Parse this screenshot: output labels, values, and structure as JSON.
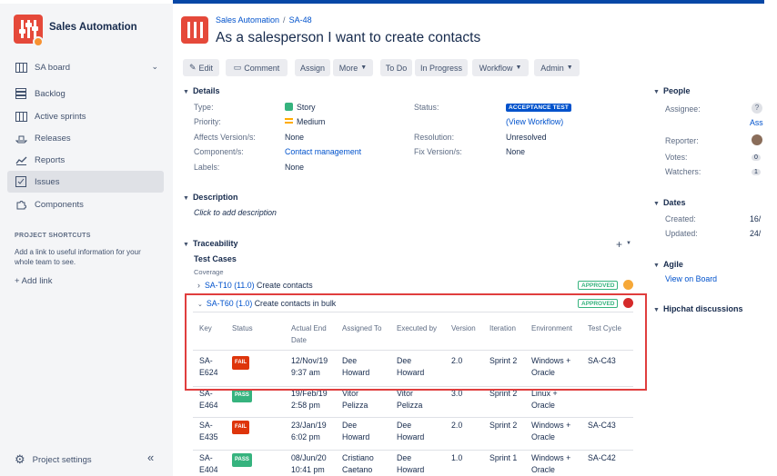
{
  "sidebar": {
    "project_name": "Sales Automation",
    "board": "SA board",
    "items": [
      {
        "label": "Backlog",
        "icon": "backlog-icon"
      },
      {
        "label": "Active sprints",
        "icon": "board-icon"
      },
      {
        "label": "Releases",
        "icon": "ship-icon"
      },
      {
        "label": "Reports",
        "icon": "chart-icon"
      },
      {
        "label": "Issues",
        "icon": "issues-icon"
      },
      {
        "label": "Components",
        "icon": "puzzle-icon"
      }
    ],
    "shortcuts_heading": "PROJECT SHORTCUTS",
    "shortcuts_text": "Add a link to useful information for your whole team to see.",
    "add_link": "+ Add link",
    "project_settings": "Project settings"
  },
  "breadcrumb": {
    "project": "Sales Automation",
    "issue_key": "SA-48"
  },
  "issue_title": "As a salesperson I want to create contacts",
  "toolbar": {
    "edit": "Edit",
    "comment": "Comment",
    "assign": "Assign",
    "more": "More",
    "todo": "To Do",
    "in_progress": "In Progress",
    "workflow": "Workflow",
    "admin": "Admin"
  },
  "details": {
    "heading": "Details",
    "type_label": "Type:",
    "type_value": "Story",
    "priority_label": "Priority:",
    "priority_value": "Medium",
    "affects_label": "Affects Version/s:",
    "affects_value": "None",
    "component_label": "Component/s:",
    "component_value": "Contact management",
    "labels_label": "Labels:",
    "labels_value": "None",
    "status_label": "Status:",
    "status_value": "ACCEPTANCE TEST",
    "view_workflow": "(View Workflow)",
    "resolution_label": "Resolution:",
    "resolution_value": "Unresolved",
    "fix_label": "Fix Version/s:",
    "fix_value": "None"
  },
  "description": {
    "heading": "Description",
    "placeholder": "Click to add description"
  },
  "traceability": {
    "heading": "Traceability",
    "test_cases": "Test Cases",
    "coverage": "Coverage",
    "case1": {
      "key": "SA-T10",
      "version": "(11.0)",
      "name": "Create contacts",
      "status": "APPROVED",
      "dot_color": "#f6a838"
    },
    "case2": {
      "key": "SA-T60",
      "version": "(1.0)",
      "name": "Create contacts in bulk",
      "status": "APPROVED",
      "dot_color": "#d52a2a"
    },
    "headers": [
      "Key",
      "Status",
      "Actual End Date",
      "Assigned To",
      "Executed by",
      "Version",
      "Iteration",
      "Environment",
      "Test Cycle"
    ],
    "rows": [
      {
        "key": "SA-E624",
        "status": "FAIL",
        "date": "12/Nov/19 9:37 am",
        "assigned": "Dee Howard",
        "executed": "Dee Howard",
        "version": "2.0",
        "iteration": "Sprint 2",
        "env": "Windows + Oracle",
        "cycle": "SA-C43"
      },
      {
        "key": "SA-E464",
        "status": "PASS",
        "date": "19/Feb/19 2:58 pm",
        "assigned": "Vitor Pelizza",
        "executed": "Vitor Pelizza",
        "version": "3.0",
        "iteration": "Sprint 2",
        "env": "Linux + Oracle",
        "cycle": ""
      },
      {
        "key": "SA-E435",
        "status": "FAIL",
        "date": "23/Jan/19 6:02 pm",
        "assigned": "Dee Howard",
        "executed": "Dee Howard",
        "version": "2.0",
        "iteration": "Sprint 2",
        "env": "Windows + Oracle",
        "cycle": "SA-C43"
      },
      {
        "key": "SA-E404",
        "status": "PASS",
        "date": "08/Jun/20 10:41 pm",
        "assigned": "Cristiano Caetano",
        "executed": "Dee Howard",
        "version": "1.0",
        "iteration": "Sprint 1",
        "env": "Windows + Oracle",
        "cycle": "SA-C42"
      }
    ]
  },
  "people": {
    "heading": "People",
    "assignee_label": "Assignee:",
    "assignee_link": "Ass",
    "reporter_label": "Reporter:",
    "votes_label": "Votes:",
    "votes": "0",
    "watchers_label": "Watchers:",
    "watchers": "1"
  },
  "dates": {
    "heading": "Dates",
    "created_label": "Created:",
    "created": "16/",
    "updated_label": "Updated:",
    "updated": "24/"
  },
  "agile": {
    "heading": "Agile",
    "view_on_board": "View on Board"
  },
  "hipchat": {
    "heading": "Hipchat discussions"
  },
  "colors": {
    "accent": "#0052cc",
    "danger": "#de350b",
    "success": "#36b37e",
    "highlight_box": "#e03e3e"
  }
}
